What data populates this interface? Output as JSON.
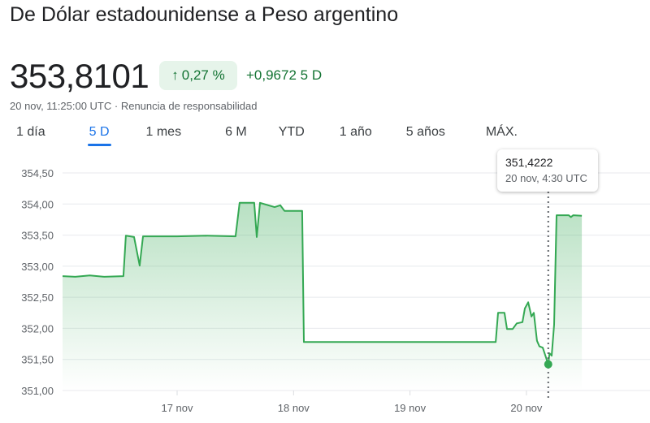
{
  "title": "De Dólar estadounidense a Peso argentino",
  "price": "353,8101",
  "change_pct": "0,27 %",
  "change_abs": "+0,9672 5 D",
  "subtitle": {
    "time": "20 nov, 11:25:00 UTC",
    "sep": " · ",
    "disclaimer": "Renuncia de responsabilidad"
  },
  "tabs": [
    {
      "label": "1 día"
    },
    {
      "label": "5 D",
      "active": true
    },
    {
      "label": "1 mes"
    },
    {
      "label": "6 M"
    },
    {
      "label": "YTD"
    },
    {
      "label": "1 año"
    },
    {
      "label": "5 años"
    },
    {
      "label": "MÁX."
    }
  ],
  "tooltip": {
    "value": "351,4222",
    "time": "20 nov, 4:30 UTC"
  },
  "colors": {
    "line": "#34a853",
    "positive": "#137333",
    "accent": "#1a73e8"
  },
  "chart_data": {
    "type": "area",
    "title": "",
    "xlabel": "",
    "ylabel": "",
    "ylim": [
      351,
      354.5
    ],
    "yticks": [
      "354,50",
      "354,00",
      "353,50",
      "353,00",
      "352,50",
      "352,00",
      "351,50",
      "351,00"
    ],
    "ytick_values": [
      354.5,
      354,
      353.5,
      353,
      352.5,
      352,
      351.5,
      351
    ],
    "xticks": [
      {
        "label": "17 nov",
        "day": 17
      },
      {
        "label": "18 nov",
        "day": 18
      },
      {
        "label": "19 nov",
        "day": 19
      },
      {
        "label": "20 nov",
        "day": 20
      }
    ],
    "grid": true,
    "highlight": {
      "x": "20 nov 04:30",
      "y": 351.4222
    },
    "points": [
      [
        "16 nov 00:23",
        352.84
      ],
      [
        "16 nov 03:00",
        352.83
      ],
      [
        "16 nov 06:00",
        352.85
      ],
      [
        "16 nov 09:00",
        352.83
      ],
      [
        "16 nov 12:56",
        352.84
      ],
      [
        "16 nov 13:26",
        353.49
      ],
      [
        "16 nov 15:07",
        353.47
      ],
      [
        "16 nov 16:17",
        353.01
      ],
      [
        "16 nov 16:58",
        353.48
      ],
      [
        "17 nov 00:00",
        353.48
      ],
      [
        "17 nov 06:00",
        353.49
      ],
      [
        "17 nov 12:03",
        353.48
      ],
      [
        "17 nov 12:53",
        354.02
      ],
      [
        "17 nov 15:54",
        354.02
      ],
      [
        "17 nov 16:25",
        353.47
      ],
      [
        "17 nov 17:05",
        354.02
      ],
      [
        "17 nov 20:06",
        353.95
      ],
      [
        "17 nov 21:16",
        353.98
      ],
      [
        "17 nov 22:07",
        353.89
      ],
      [
        "18 nov 01:47",
        353.89
      ],
      [
        "18 nov 02:08",
        351.78
      ],
      [
        "19 nov 17:40",
        351.78
      ],
      [
        "19 nov 18:09",
        352.25
      ],
      [
        "19 nov 19:29",
        352.25
      ],
      [
        "19 nov 20:00",
        351.99
      ],
      [
        "19 nov 21:10",
        351.99
      ],
      [
        "19 nov 22:00",
        352.08
      ],
      [
        "19 nov 23:11",
        352.1
      ],
      [
        "19 nov 23:41",
        352.32
      ],
      [
        "20 nov 00:22",
        352.42
      ],
      [
        "20 nov 01:02",
        352.19
      ],
      [
        "20 nov 01:31",
        352.25
      ],
      [
        "20 nov 02:11",
        351.8
      ],
      [
        "20 nov 02:41",
        351.71
      ],
      [
        "20 nov 03:22",
        351.69
      ],
      [
        "20 nov 04:30",
        351.42
      ],
      [
        "20 nov 04:45",
        351.6
      ],
      [
        "20 nov 05:13",
        351.56
      ],
      [
        "20 nov 05:43",
        352.06
      ],
      [
        "20 nov 06:13",
        353.82
      ],
      [
        "20 nov 08:44",
        353.82
      ],
      [
        "20 nov 09:10",
        353.79
      ],
      [
        "20 nov 09:40",
        353.82
      ],
      [
        "20 nov 11:25",
        353.81
      ]
    ]
  }
}
